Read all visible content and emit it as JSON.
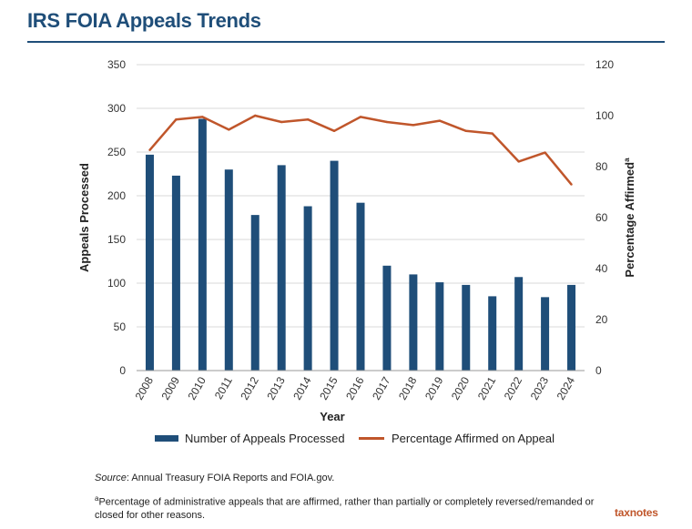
{
  "title": "IRS FOIA Appeals Trends",
  "brand": "taxnotes",
  "colors": {
    "title": "#1f4e79",
    "bar": "#1f4e79",
    "line": "#c0562b",
    "grid": "#d9d9d9"
  },
  "source": {
    "label": "Source",
    "text": ": Annual Treasury FOIA Reports and FOIA.gov."
  },
  "footnote": {
    "marker": "a",
    "text": "Percentage of administrative appeals that are affirmed, rather than partially or completely reversed/remanded or closed for other reasons."
  },
  "chart_data": {
    "type": "bar",
    "categories": [
      "2008",
      "2009",
      "2010",
      "2011",
      "2012",
      "2013",
      "2014",
      "2015",
      "2016",
      "2017",
      "2018",
      "2019",
      "2020",
      "2021",
      "2022",
      "2023",
      "2024"
    ],
    "series": [
      {
        "name": "Number of Appeals Processed",
        "type": "bar",
        "axis": "left",
        "values": [
          247,
          223,
          288,
          230,
          178,
          235,
          188,
          240,
          192,
          120,
          110,
          101,
          98,
          85,
          107,
          84,
          98
        ]
      },
      {
        "name": "Percentage Affirmed on Appeal",
        "type": "line",
        "axis": "right",
        "values": [
          86.5,
          98.5,
          99.5,
          94.5,
          100,
          97.5,
          98.5,
          94,
          99.5,
          97.5,
          96.3,
          98,
          94,
          93,
          82,
          85.5,
          73
        ]
      }
    ],
    "xlabel": "Year",
    "ylabel": "Appeals Processed",
    "y2label": "Percentage Affirmed",
    "y2label_superscript": "a",
    "ylim": [
      0,
      350
    ],
    "y2lim": [
      0,
      120
    ],
    "yticks": [
      "0",
      "50",
      "100",
      "150",
      "200",
      "250",
      "300",
      "350"
    ],
    "y2ticks": [
      "0",
      "20",
      "40",
      "60",
      "80",
      "100",
      "120"
    ],
    "grid": true,
    "legend_position": "bottom"
  }
}
